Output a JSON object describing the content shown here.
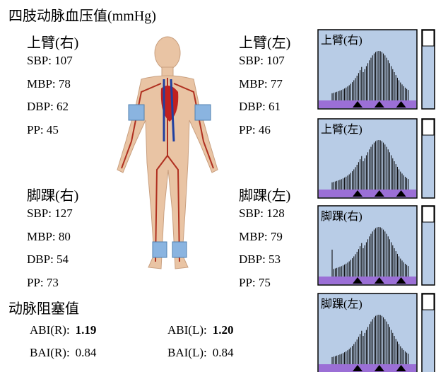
{
  "title": "四肢动脉血压值(mmHg)",
  "groups": [
    {
      "label": "上臂(右)",
      "rows": [
        "SBP: 107",
        "MBP: 78",
        "DBP: 62",
        "PP: 45"
      ]
    },
    {
      "label": "上臂(左)",
      "rows": [
        "SBP: 107",
        "MBP: 77",
        "DBP: 61",
        "PP: 46"
      ]
    },
    {
      "label": "脚踝(右)",
      "rows": [
        "SBP: 127",
        "MBP: 80",
        "DBP: 54",
        "PP: 73"
      ]
    },
    {
      "label": "脚踝(左)",
      "rows": [
        "SBP: 128",
        "MBP: 79",
        "DBP: 53",
        "PP: 75"
      ]
    }
  ],
  "index": {
    "title": "动脉阻塞值",
    "rows": [
      {
        "label": "ABI(R):",
        "value": "1.19"
      },
      {
        "label": "ABI(L):",
        "value": "1.20"
      },
      {
        "label": "BAI(R):",
        "value": "0.84"
      },
      {
        "label": "BAI(L):",
        "value": "0.84"
      }
    ]
  },
  "waveforms": [
    "上臂(右)",
    "上臂(左)",
    "脚踝(右)",
    "脚踝(左)"
  ]
}
